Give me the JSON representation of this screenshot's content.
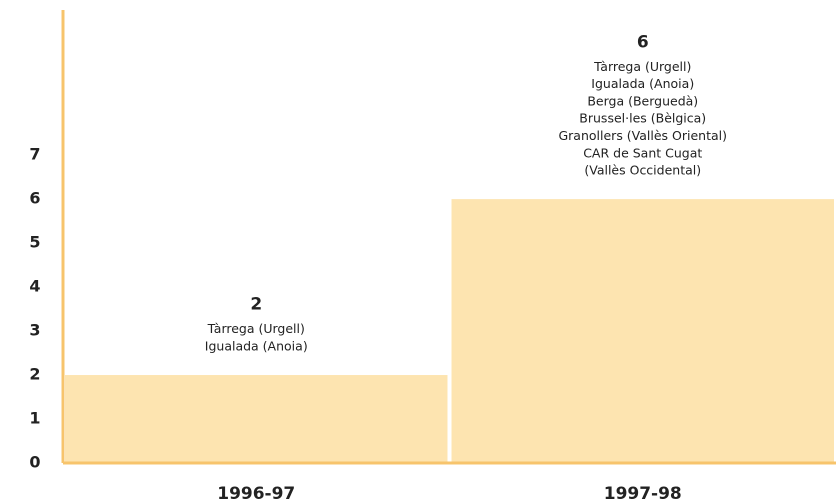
{
  "chart_data": {
    "type": "bar",
    "categories": [
      "1996-97",
      "1997-98"
    ],
    "values": [
      2,
      6
    ],
    "annotations": [
      [
        "Tàrrega (Urgell)",
        "Igualada (Anoia)"
      ],
      [
        "Tàrrega (Urgell)",
        "Igualada (Anoia)",
        "Berga (Berguedà)",
        "Brussel·les (Bèlgica)",
        "Granollers (Vallès Oriental)",
        "CAR de Sant Cugat",
        "(Vallès Occidental)"
      ]
    ],
    "color": "#fde4b0",
    "axis_color": "#f7c46c",
    "ylim": [
      0,
      10.3
    ],
    "yticks": [
      0,
      1,
      2,
      3,
      4,
      5,
      6,
      7
    ],
    "grid": false
  }
}
